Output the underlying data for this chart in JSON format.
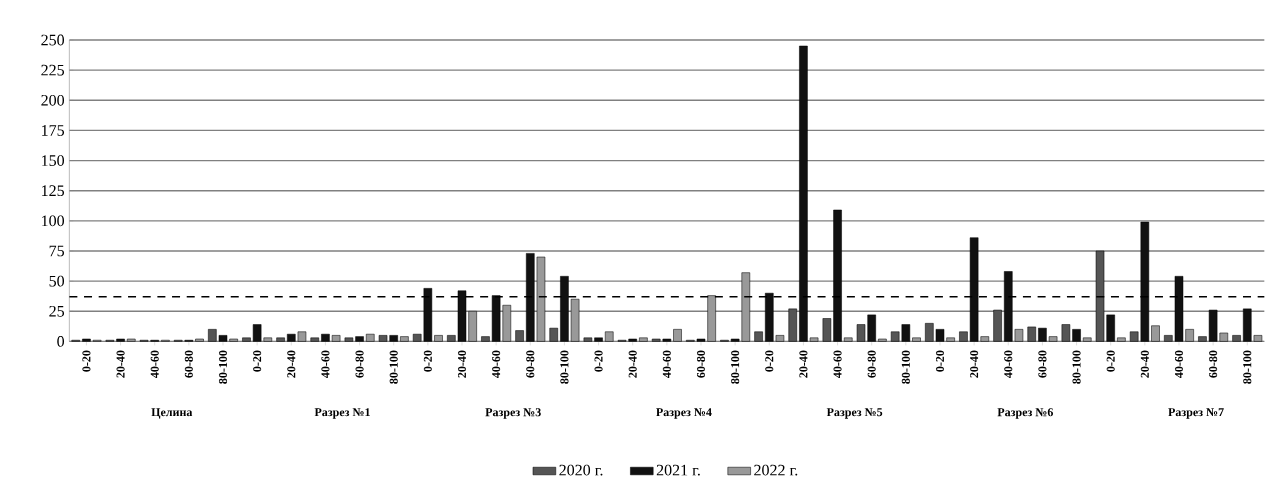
{
  "chart_data": {
    "type": "bar",
    "categories": [
      "0-20",
      "20-40",
      "40-60",
      "60-80",
      "80-100",
      "0-20",
      "20-40",
      "40-60",
      "60-80",
      "80-100",
      "0-20",
      "20-40",
      "40-60",
      "60-80",
      "80-100",
      "0-20",
      "20-40",
      "40-60",
      "60-80",
      "80-100",
      "0-20",
      "20-40",
      "40-60",
      "60-80",
      "80-100",
      "0-20",
      "20-40",
      "40-60",
      "60-80",
      "80-100",
      "0-20",
      "20-40",
      "40-60",
      "60-80",
      "80-100"
    ],
    "series": [
      {
        "name": "2020 г.",
        "color": "#555555",
        "values": [
          1,
          1,
          1,
          1,
          10,
          3,
          3,
          3,
          3,
          5,
          6,
          5,
          4,
          9,
          11,
          3,
          1,
          2,
          1,
          1,
          8,
          27,
          19,
          14,
          8,
          15,
          8,
          26,
          12,
          14,
          75,
          8,
          5,
          4,
          5
        ]
      },
      {
        "name": "2021 г.",
        "color": "#111111",
        "values": [
          2,
          2,
          1,
          1,
          5,
          14,
          6,
          6,
          4,
          5,
          44,
          42,
          38,
          73,
          54,
          3,
          2,
          2,
          2,
          2,
          40,
          245,
          109,
          22,
          14,
          10,
          86,
          58,
          11,
          10,
          22,
          99,
          54,
          26,
          27
        ]
      },
      {
        "name": "2022 г.",
        "color": "#999999",
        "values": [
          1,
          2,
          1,
          2,
          2,
          3,
          8,
          5,
          6,
          4,
          5,
          25,
          30,
          70,
          35,
          8,
          3,
          10,
          38,
          57,
          5,
          3,
          3,
          2,
          3,
          3,
          4,
          10,
          4,
          3,
          3,
          13,
          10,
          7,
          5
        ]
      }
    ],
    "annotations": [
      "Целина",
      "Разрез №1",
      "Разрез №3",
      "Разрез №4",
      "Разрез №5",
      "Разрез №6",
      "Разрез №7"
    ],
    "ref_lines": [
      {
        "axis": "y",
        "value": 37,
        "color": "#000000",
        "line_style": "dashed"
      }
    ],
    "ylim": [
      0,
      250
    ],
    "yticks": [
      0,
      25,
      50,
      75,
      100,
      125,
      150,
      175,
      200,
      225,
      250
    ],
    "grid": "y",
    "legend": "bottom"
  }
}
